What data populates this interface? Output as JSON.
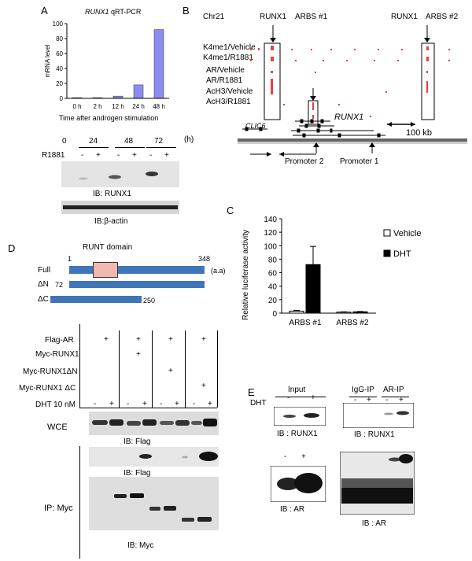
{
  "panel_letters": {
    "a": "A",
    "b": "B",
    "c": "C",
    "d": "D",
    "e": "E"
  },
  "panelA": {
    "title_gene": "RUNX1",
    "title_rest": " qRT-PCR",
    "chart_data": {
      "type": "bar",
      "categories": [
        "0 h",
        "2 h",
        "12 h",
        "24 h",
        "48 h"
      ],
      "values": [
        1,
        1,
        3,
        18,
        92
      ],
      "ylabel": "mRNA level",
      "xlabel": "Time after androgen stimulation",
      "ylim": [
        0,
        100
      ],
      "yticks": [
        "0",
        "20",
        "40",
        "60",
        "80",
        "100"
      ],
      "bar_color": "#8c8cf0"
    },
    "blot": {
      "timepoints": [
        "0",
        "24",
        "48",
        "72"
      ],
      "unit": "(h)",
      "treatment": "R1881",
      "signs": [
        "-",
        "+",
        "-",
        "+",
        "-",
        "+"
      ],
      "ib1": "IB: RUNX1",
      "ib2": "IB:β-actin"
    }
  },
  "panelB": {
    "chrom": "Chr21",
    "runx1_a": "RUNX1",
    "arbs1": "ARBS #1",
    "runx1_b": "RUNX1",
    "arbs2": "ARBS #2",
    "tracks": [
      "K4me1/Vehicle",
      "K4me1/R1881",
      "AR/Vehicle",
      "AR/R1881",
      "AcH3/Vehicle",
      "AcH3/R1881"
    ],
    "gene": "RUNX1",
    "clic6": "CLIC6",
    "scale": "100  kb",
    "promoter2": "Promoter 2",
    "promoter1": "Promoter 1"
  },
  "panelC": {
    "chart_data": {
      "type": "bar",
      "categories": [
        "ARBS #1",
        "ARBS #2"
      ],
      "series": [
        {
          "name": "Vehicle",
          "values": [
            3,
            1.5
          ],
          "errors": [
            1,
            0.5
          ],
          "color": "#ffffff"
        },
        {
          "name": "DHT",
          "values": [
            72,
            2
          ],
          "errors": [
            27,
            0.5
          ],
          "color": "#000000"
        }
      ],
      "ylabel": "Relative luciferase activity",
      "ylim": [
        0,
        140
      ],
      "yticks": [
        "0",
        "20",
        "40",
        "60",
        "80",
        "100",
        "120",
        "140"
      ]
    }
  },
  "panelD": {
    "domain_label": "RUNT domain",
    "constructs": [
      {
        "name": "Full",
        "start": "1",
        "end": "348"
      },
      {
        "name": "ΔN",
        "start": "72",
        "end": ""
      },
      {
        "name": "ΔC",
        "start": "",
        "end": "250"
      }
    ],
    "aa": "(a.a)",
    "rows": [
      "Flag-AR",
      "Myc-RUNX1",
      "Myc-RUNX1ΔN",
      "Myc-RUNX1  ΔC",
      "DHT  10 nM"
    ],
    "plus": "+",
    "minus": "-",
    "wce": "WCE",
    "ib_flag1": "IB: Flag",
    "ib_flag2": "IB: Flag",
    "ip": "IP: Myc",
    "ib_myc": "IB: Myc"
  },
  "panelE": {
    "input": "Input",
    "igg": "IgG-IP",
    "arip": "AR-IP",
    "dht": "DHT",
    "ib_runx1_a": "IB : RUNX1",
    "ib_runx1_b": "IB : RUNX1",
    "ib_ar_a": "IB : AR",
    "ib_ar_b": "IB : AR"
  }
}
